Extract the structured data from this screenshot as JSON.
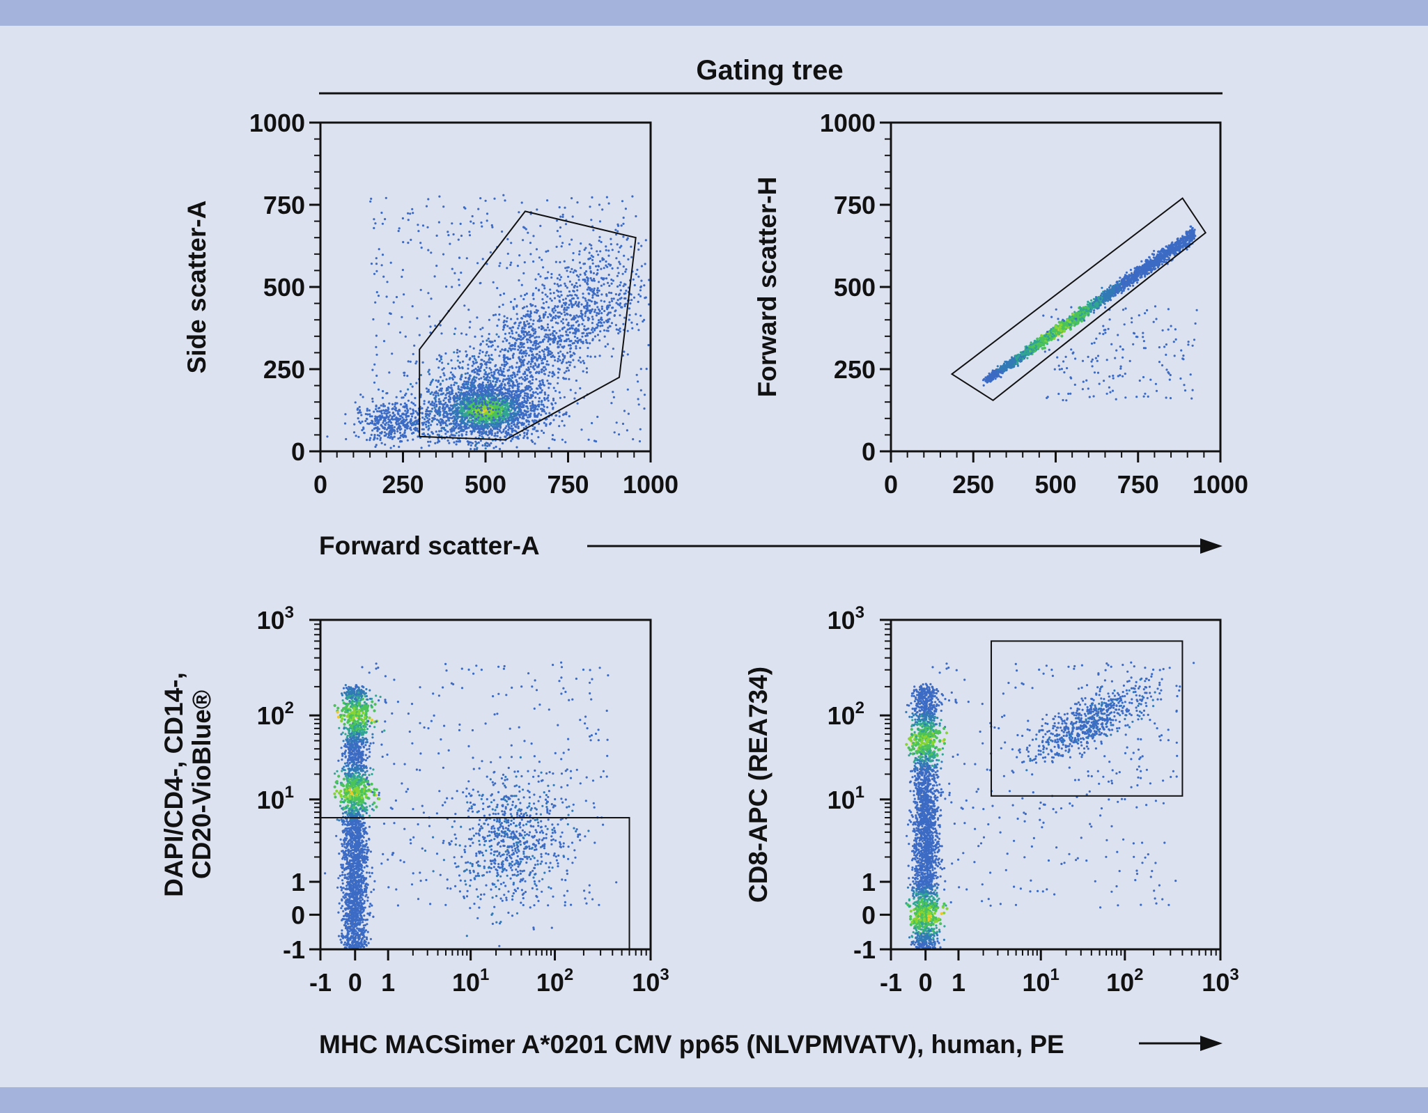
{
  "figure": {
    "title": "Gating tree",
    "shared_x_label_top": "Forward scatter-A",
    "shared_x_label_bottom": "MHC MACSimer A*0201 CMV pp65 (NLVPMVATV), human, PE",
    "colors": {
      "background": "#dde2f1",
      "band": "#a4b3dc",
      "dot_low": "#2b5fc0",
      "dot_mid": "#1f8f8a",
      "dot_high": "#3cc04a",
      "dot_peak": "#f0c419"
    }
  },
  "chart_data": [
    {
      "type": "scatter",
      "title": "",
      "xlabel": "Forward scatter-A",
      "ylabel": "Side scatter-A",
      "x_scale": "linear",
      "y_scale": "linear",
      "xlim": [
        0,
        1000
      ],
      "ylim": [
        0,
        1000
      ],
      "x_ticks": [
        "0",
        "250",
        "500",
        "750",
        "1000"
      ],
      "y_ticks": [
        "0",
        "250",
        "500",
        "750",
        "1000"
      ],
      "gate": {
        "shape": "polygon",
        "points": [
          [
            300,
            310
          ],
          [
            620,
            730
          ],
          [
            955,
            650
          ],
          [
            905,
            225
          ],
          [
            560,
            35
          ],
          [
            300,
            45
          ]
        ]
      },
      "populations": [
        {
          "name": "main",
          "center": [
            500,
            125
          ],
          "spread": [
            95,
            45
          ]
        },
        {
          "name": "upper",
          "center": [
            700,
            380
          ],
          "spread": [
            130,
            120
          ]
        },
        {
          "name": "left-tail",
          "center": [
            220,
            90
          ],
          "spread": [
            60,
            30
          ]
        }
      ],
      "grid": false
    },
    {
      "type": "scatter",
      "title": "",
      "xlabel": "Forward scatter-A",
      "ylabel": "Forward scatter-H",
      "x_scale": "linear",
      "y_scale": "linear",
      "xlim": [
        0,
        1000
      ],
      "ylim": [
        0,
        1000
      ],
      "x_ticks": [
        "0",
        "250",
        "500",
        "750",
        "1000"
      ],
      "y_ticks": [
        "0",
        "250",
        "500",
        "750",
        "1000"
      ],
      "gate": {
        "shape": "polygon",
        "points": [
          [
            185,
            235
          ],
          [
            885,
            770
          ],
          [
            955,
            665
          ],
          [
            310,
            155
          ]
        ]
      },
      "populations": [
        {
          "name": "singlets",
          "line_from": [
            290,
            215
          ],
          "line_to": [
            920,
            660
          ],
          "peak_at": [
            510,
            355
          ]
        }
      ],
      "grid": false
    },
    {
      "type": "scatter",
      "title": "",
      "xlabel": "MHC MACSimer A*0201 CMV pp65 (NLVPMVATV), human, PE",
      "ylabel_lines": [
        "DAPI/CD4-, CD14-,",
        "CD20-VioBlue®"
      ],
      "x_scale": "biexponential",
      "y_scale": "biexponential",
      "xlim": [
        -1,
        1000
      ],
      "ylim": [
        -1,
        1000
      ],
      "x_ticks": [
        "-1",
        "0",
        "1",
        "10",
        "10²",
        "10³"
      ],
      "y_ticks": [
        "-1",
        "0",
        "1",
        "10",
        "10²",
        "10³"
      ],
      "gate": {
        "shape": "rectangle",
        "x": [
          -1,
          600
        ],
        "y": [
          -1,
          6
        ]
      },
      "populations": [
        {
          "name": "negative-column",
          "x": 0,
          "y_range": [
            -1,
            200
          ],
          "peaks": [
            12,
            100
          ]
        },
        {
          "name": "tetramer-positive",
          "center": [
            30,
            3
          ]
        }
      ],
      "grid": false
    },
    {
      "type": "scatter",
      "title": "",
      "xlabel": "MHC MACSimer A*0201 CMV pp65 (NLVPMVATV), human, PE",
      "ylabel": "CD8-APC (REA734)",
      "x_scale": "biexponential",
      "y_scale": "biexponential",
      "xlim": [
        -1,
        1000
      ],
      "ylim": [
        -1,
        1000
      ],
      "x_ticks": [
        "-1",
        "0",
        "1",
        "10",
        "10²",
        "10³"
      ],
      "y_ticks": [
        "-1",
        "0",
        "1",
        "10",
        "10²",
        "10³"
      ],
      "gate": {
        "shape": "rectangle",
        "x": [
          2.5,
          400
        ],
        "y": [
          11,
          600
        ]
      },
      "populations": [
        {
          "name": "negative-column",
          "x": 0,
          "y_range": [
            -1,
            200
          ],
          "peaks": [
            0,
            50
          ]
        },
        {
          "name": "CD8+ tetramer+",
          "center": [
            35,
            80
          ]
        }
      ],
      "grid": false
    }
  ]
}
